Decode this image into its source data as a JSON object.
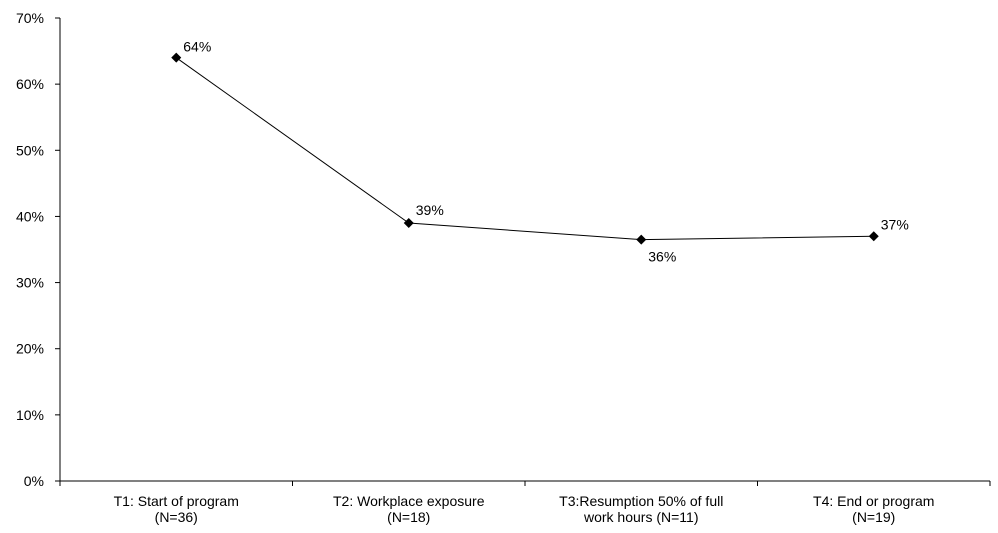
{
  "chart_data": {
    "type": "line",
    "title": "",
    "xlabel": "",
    "ylabel": "",
    "ylim": [
      0,
      70
    ],
    "yticks": [
      0,
      10,
      20,
      30,
      40,
      50,
      60,
      70
    ],
    "ytick_labels": [
      "0%",
      "10%",
      "20%",
      "30%",
      "40%",
      "50%",
      "60%",
      "70%"
    ],
    "categories": [
      [
        "T1: Start of program",
        "(N=36)"
      ],
      [
        "T2: Workplace exposure",
        "(N=18)"
      ],
      [
        "T3:Resumption 50% of full",
        "work hours  (N=11)"
      ],
      [
        "T4: End or program",
        "(N=19)"
      ]
    ],
    "series": [
      {
        "values": [
          64,
          39,
          36.5,
          37
        ],
        "data_labels": [
          "64%",
          "39%",
          "36%",
          "37%"
        ],
        "color": "#000000",
        "marker": "diamond"
      }
    ],
    "grid": false,
    "legend": "none"
  }
}
